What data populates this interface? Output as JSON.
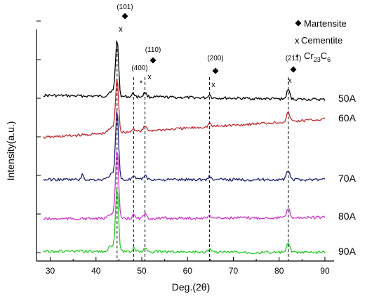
{
  "chart_data": {
    "type": "line",
    "xlabel": "Deg.(2θ)",
    "ylabel": "Intensity(a.u.)",
    "xlim": [
      27,
      92
    ],
    "x_ticks": [
      30,
      40,
      50,
      60,
      70,
      80,
      90
    ],
    "series": [
      {
        "name": "50A",
        "color": "#000000"
      },
      {
        "name": "60A",
        "color": "#c0272d"
      },
      {
        "name": "70A",
        "color": "#1f1f6e"
      },
      {
        "name": "80A",
        "color": "#cc33cc"
      },
      {
        "name": "90A",
        "color": "#22cc22"
      }
    ],
    "peaks": [
      {
        "position": 44.6,
        "label": "(101)"
      },
      {
        "position": 48.2,
        "label": "(400)"
      },
      {
        "position": 50.7,
        "label": "(110)"
      },
      {
        "position": 64.8,
        "label": "(200)"
      },
      {
        "position": 82.0,
        "label": "(211)"
      }
    ],
    "legend": [
      {
        "symbol": "♦",
        "text": "Martensite"
      },
      {
        "symbol": "x",
        "text": "Cementite"
      },
      {
        "symbol": "*",
        "text": "Cr",
        "sub1": "23",
        "mid": "C",
        "sub2": "6"
      }
    ]
  }
}
